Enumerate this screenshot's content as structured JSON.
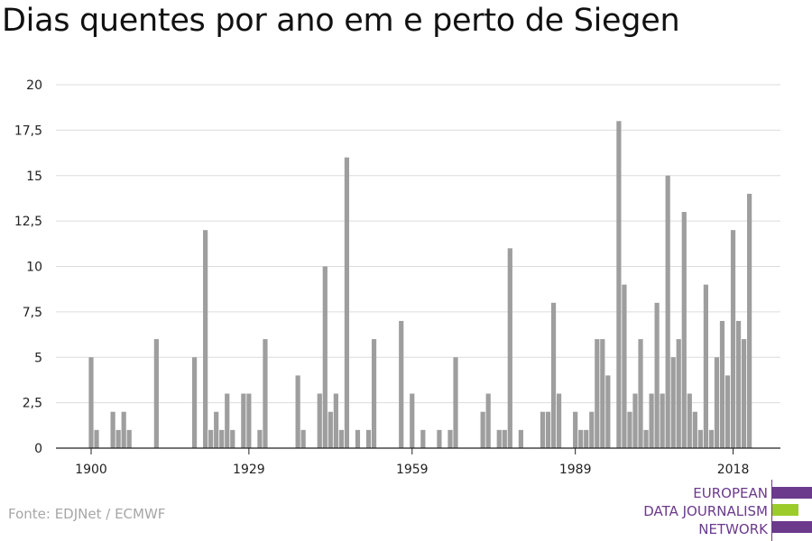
{
  "title": "Dias quentes por ano em e perto de Siegen",
  "source": "Fonte: EDJNet / ECMWF",
  "logo": {
    "lines": [
      "EUROPEAN",
      "DATA JOURNALISM",
      "NETWORK"
    ],
    "colors": {
      "purple": "#6b3a8c",
      "green": "#9ccc2a"
    }
  },
  "chart_data": {
    "type": "bar",
    "title": "Dias quentes por ano em e perto de Siegen",
    "xlabel": "",
    "ylabel": "",
    "x_start": 1900,
    "x_end": 2018,
    "x_tick_values": [
      1900,
      1929,
      1959,
      1989,
      2018
    ],
    "x_tick_labels": [
      "1900",
      "1929",
      "1959",
      "1989",
      "2018"
    ],
    "ylim": [
      0,
      20
    ],
    "y_tick_values": [
      0,
      2.5,
      5,
      7.5,
      10,
      12.5,
      15,
      17.5,
      20
    ],
    "y_tick_labels": [
      "0",
      "2,5",
      "5",
      "7,5",
      "10",
      "12,5",
      "15",
      "17,5",
      "20"
    ],
    "grid": true,
    "bar_color": "#9e9e9e",
    "series": [
      {
        "values": [
          5,
          1,
          0,
          0,
          2,
          1,
          2,
          1,
          0,
          0,
          0,
          0,
          6,
          0,
          0,
          0,
          0,
          0,
          0,
          5,
          0,
          12,
          1,
          2,
          1,
          3,
          1,
          0,
          3,
          3,
          0,
          1,
          6,
          0,
          0,
          0,
          0,
          0,
          4,
          1,
          0,
          0,
          3,
          10,
          2,
          3,
          1,
          16,
          0,
          1,
          0,
          1,
          6,
          0,
          0,
          0,
          0,
          7,
          0,
          3,
          0,
          1,
          0,
          0,
          1,
          0,
          1,
          5,
          0,
          0,
          0,
          0,
          2,
          3,
          0,
          1,
          1,
          11,
          0,
          1,
          0,
          0,
          0,
          2,
          2,
          8,
          3,
          0,
          0,
          2,
          1,
          1,
          2,
          6,
          6,
          4,
          0,
          18,
          9,
          2,
          3,
          6,
          1,
          3,
          8,
          3,
          15,
          5,
          6,
          13,
          3,
          2,
          1,
          9,
          1,
          5,
          7,
          4,
          12,
          7,
          6,
          14
        ]
      }
    ]
  }
}
